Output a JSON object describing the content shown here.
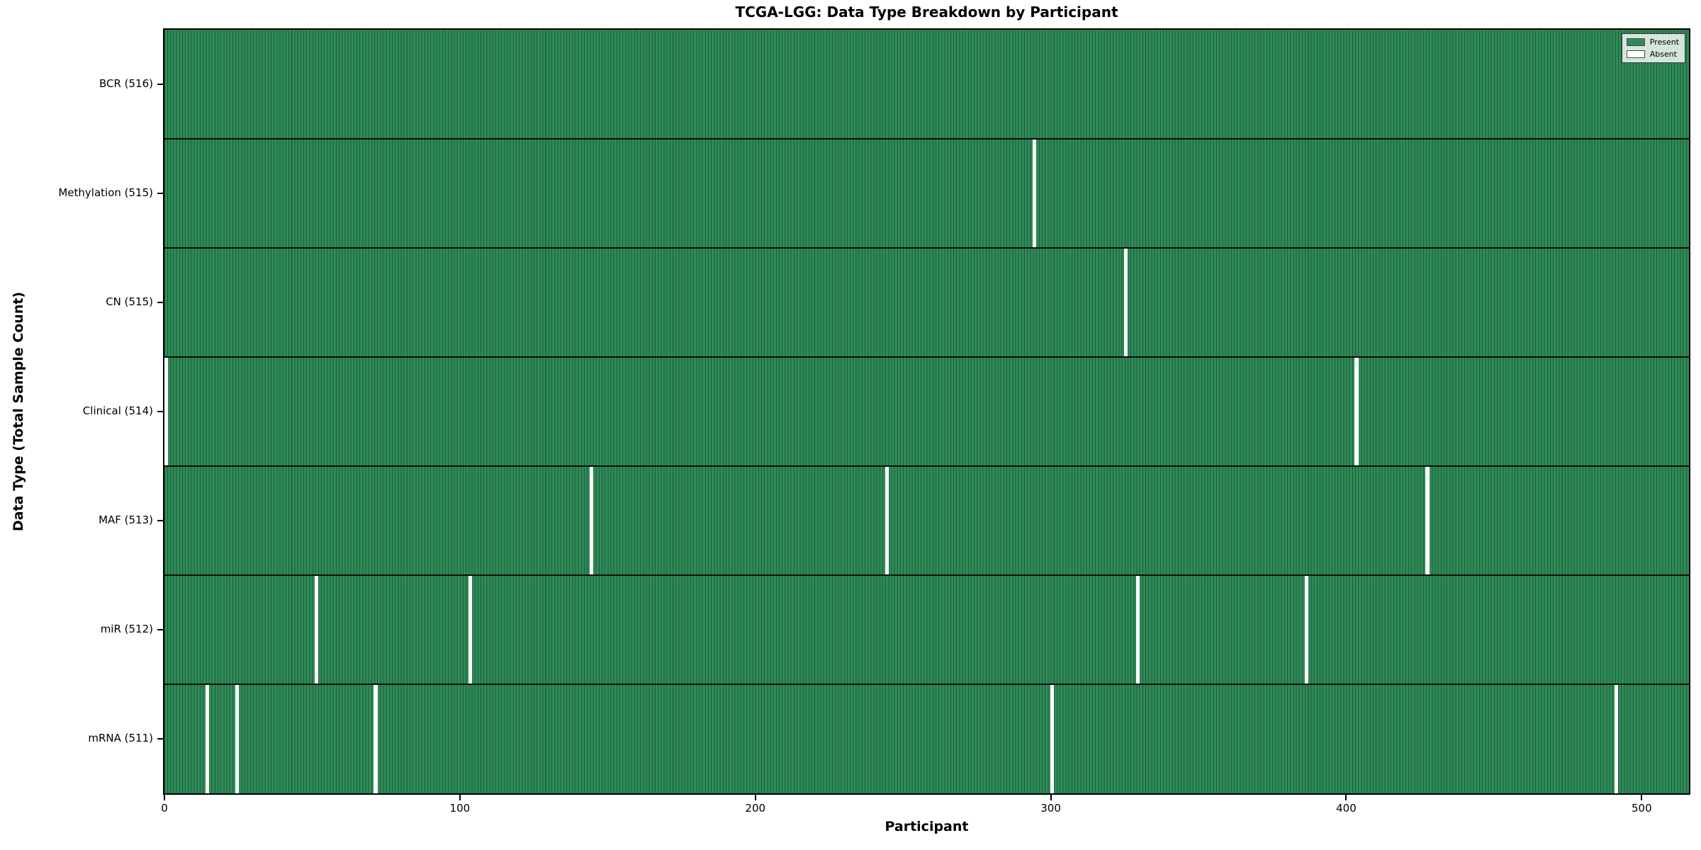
{
  "figure": {
    "title": "TCGA-LGG: Data Type Breakdown by Participant",
    "xlabel": "Participant",
    "ylabel": "Data Type (Total Sample Count)"
  },
  "legend": {
    "items": [
      {
        "name": "present",
        "label": "Present",
        "color": "#2e8b57"
      },
      {
        "name": "absent",
        "label": "Absent",
        "color": "#ffffff"
      }
    ]
  },
  "chart_data": {
    "type": "heatmap",
    "title": "TCGA-LGG: Data Type Breakdown by Participant",
    "xlabel": "Participant",
    "ylabel": "Data Type (Total Sample Count)",
    "n_participants": 516,
    "xlim": [
      0,
      516
    ],
    "x_ticks": [
      0,
      100,
      200,
      300,
      400,
      500
    ],
    "grid": false,
    "legend_position": "upper right",
    "present_color": "#2e8b57",
    "absent_color": "#ffffff",
    "bar_edge_color": "#1d5c3a",
    "separator_color": "#0b0b0b",
    "rows": [
      {
        "data_type": "BCR",
        "label": "BCR (516)",
        "total": 516,
        "absent_participants": []
      },
      {
        "data_type": "Methylation",
        "label": "Methylation (515)",
        "total": 515,
        "absent_participants": [
          294
        ]
      },
      {
        "data_type": "CN",
        "label": "CN (515)",
        "total": 515,
        "absent_participants": [
          325
        ]
      },
      {
        "data_type": "Clinical",
        "label": "Clinical (514)",
        "total": 514,
        "absent_participants": [
          0,
          403
        ]
      },
      {
        "data_type": "MAF",
        "label": "MAF (513)",
        "total": 513,
        "absent_participants": [
          144,
          244,
          427
        ]
      },
      {
        "data_type": "miR",
        "label": "miR (512)",
        "total": 512,
        "absent_participants": [
          51,
          103,
          329,
          386
        ]
      },
      {
        "data_type": "mRNA",
        "label": "mRNA (511)",
        "total": 511,
        "absent_participants": [
          14,
          24,
          71,
          300,
          491
        ]
      }
    ]
  }
}
